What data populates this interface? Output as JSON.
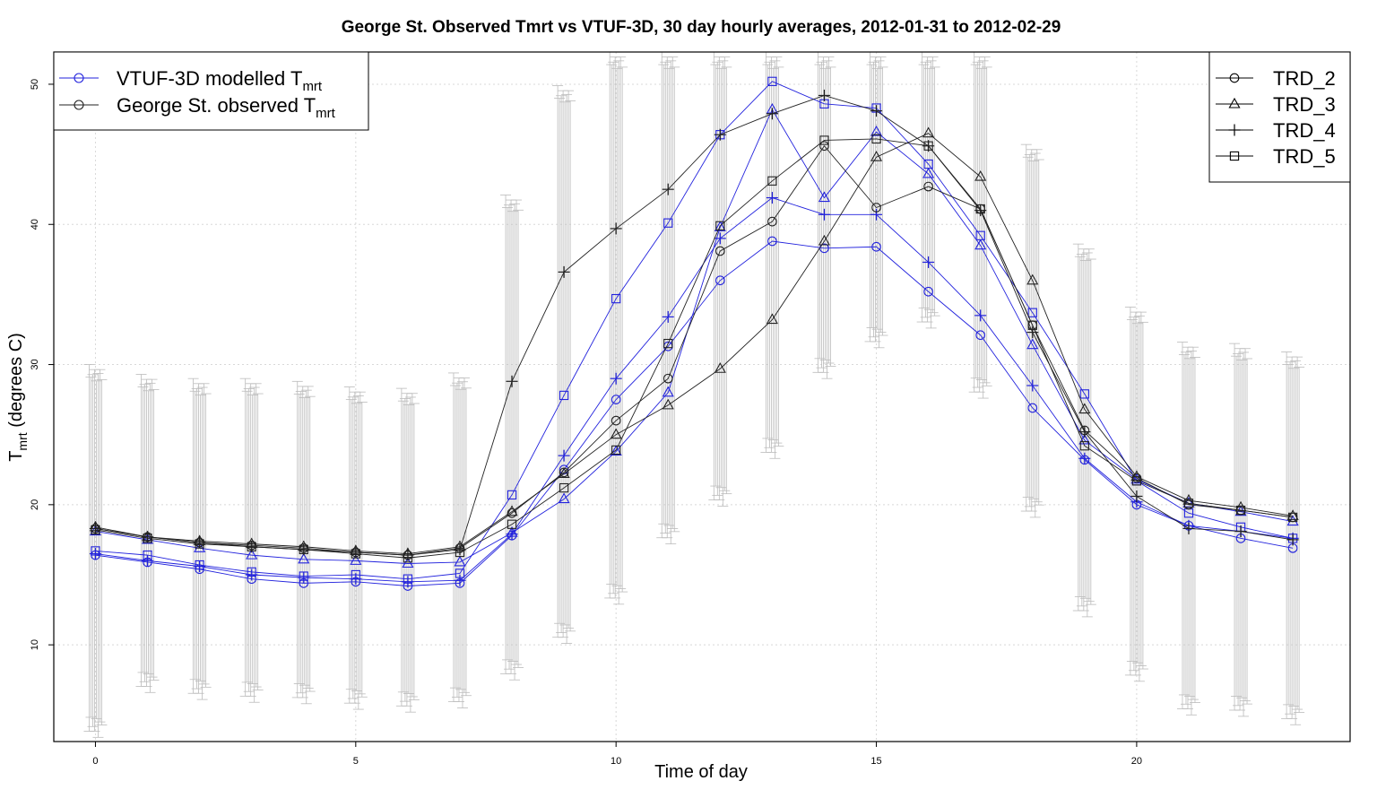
{
  "chart_data": {
    "type": "line",
    "title": "George St. Observed Tmrt vs VTUF-3D, 30 day hourly averages, 2012-01-31 to 2012-02-29",
    "xlabel": "Time of day",
    "ylabel": {
      "main": "T",
      "sub": "mrt",
      "rest": " (degrees C)"
    },
    "xlim": [
      -0.8,
      24.1
    ],
    "ylim": [
      3.1,
      52.3
    ],
    "x_ticks": [
      0,
      5,
      10,
      15,
      20
    ],
    "y_ticks": [
      10,
      20,
      30,
      40,
      50
    ],
    "grid": true,
    "x": [
      0,
      1,
      2,
      3,
      4,
      5,
      6,
      7,
      8,
      9,
      10,
      11,
      12,
      13,
      14,
      15,
      16,
      17,
      18,
      19,
      20,
      21,
      22,
      23
    ],
    "legend_source": {
      "position": "top-left",
      "entries": [
        {
          "main": "VTUF-3D modelled T",
          "sub": "mrt",
          "color": "#2222dd"
        },
        {
          "main": "George St. observed T",
          "sub": "mrt",
          "color": "#222222"
        }
      ]
    },
    "legend_sites": {
      "position": "top-right",
      "entries": [
        {
          "name": "TRD_2",
          "marker": "circle"
        },
        {
          "name": "TRD_3",
          "marker": "triangle"
        },
        {
          "name": "TRD_4",
          "marker": "plus"
        },
        {
          "name": "TRD_5",
          "marker": "square"
        }
      ]
    },
    "colors": {
      "modelled": "#2222dd",
      "observed": "#222222",
      "errorbar": "#bbbbbb",
      "grid": "#d8d8d8"
    },
    "series": [
      {
        "name": "TRD_2",
        "source": "modelled",
        "marker": "circle",
        "values": [
          16.4,
          15.9,
          15.4,
          14.7,
          14.4,
          14.5,
          14.2,
          14.4,
          17.8,
          22.5,
          27.5,
          31.3,
          36.0,
          38.8,
          38.3,
          38.4,
          35.2,
          32.1,
          26.9,
          23.2,
          20.0,
          18.5,
          17.6,
          16.9
        ]
      },
      {
        "name": "TRD_3",
        "source": "modelled",
        "marker": "triangle",
        "values": [
          18.1,
          17.5,
          16.9,
          16.4,
          16.1,
          16.0,
          15.8,
          15.9,
          18.0,
          20.4,
          23.8,
          28.0,
          39.8,
          48.2,
          41.9,
          46.6,
          43.6,
          38.5,
          31.4,
          24.6,
          21.8,
          20.1,
          19.5,
          18.8
        ]
      },
      {
        "name": "TRD_4",
        "source": "modelled",
        "marker": "plus",
        "values": [
          16.5,
          16.0,
          15.6,
          15.0,
          14.8,
          14.7,
          14.5,
          14.6,
          17.9,
          23.5,
          29.0,
          33.4,
          39.0,
          41.9,
          40.7,
          40.7,
          37.3,
          33.5,
          28.5,
          23.3,
          20.2,
          18.5,
          18.1,
          17.6
        ]
      },
      {
        "name": "TRD_5",
        "source": "modelled",
        "marker": "square",
        "values": [
          16.7,
          16.4,
          15.7,
          15.2,
          14.9,
          15.0,
          14.7,
          15.1,
          20.7,
          27.8,
          34.7,
          40.1,
          46.4,
          50.2,
          48.6,
          48.3,
          44.3,
          39.2,
          33.7,
          27.9,
          21.7,
          19.4,
          18.4,
          17.6
        ]
      },
      {
        "name": "TRD_2",
        "source": "observed",
        "marker": "circle",
        "values": [
          18.3,
          17.7,
          17.3,
          17.1,
          16.9,
          16.6,
          16.4,
          16.9,
          19.4,
          22.3,
          26.0,
          29.0,
          38.1,
          40.2,
          45.6,
          41.2,
          42.7,
          41.1,
          32.8,
          25.3,
          21.9,
          20.0,
          19.6,
          19.1
        ]
      },
      {
        "name": "TRD_3",
        "source": "observed",
        "marker": "triangle",
        "values": [
          18.4,
          17.7,
          17.4,
          17.2,
          17.0,
          16.7,
          16.5,
          17.0,
          19.5,
          22.2,
          25.0,
          27.1,
          29.7,
          33.2,
          38.8,
          44.8,
          46.5,
          43.4,
          36.0,
          26.8,
          22.0,
          20.3,
          19.8,
          19.2
        ]
      },
      {
        "name": "TRD_4",
        "source": "observed",
        "marker": "plus",
        "values": [
          18.3,
          17.7,
          17.3,
          17.0,
          16.8,
          16.6,
          16.4,
          16.8,
          28.8,
          36.6,
          39.7,
          42.5,
          46.4,
          47.9,
          49.2,
          48.1,
          45.6,
          41.0,
          32.3,
          25.2,
          20.6,
          18.3,
          18.1,
          17.5
        ]
      },
      {
        "name": "TRD_5",
        "source": "observed",
        "marker": "square",
        "values": [
          18.2,
          17.6,
          17.2,
          17.0,
          16.8,
          16.5,
          16.2,
          16.6,
          18.6,
          21.2,
          23.9,
          31.5,
          39.9,
          43.1,
          46.0,
          46.1,
          45.6,
          41.1,
          32.8,
          24.2,
          21.7,
          20.1,
          19.6,
          19.1
        ]
      }
    ],
    "error_bars": {
      "x": [
        0,
        1,
        2,
        3,
        4,
        5,
        6,
        7,
        8,
        9,
        10,
        11,
        12,
        13,
        14,
        15,
        16,
        17,
        18,
        19,
        20,
        21,
        22,
        23
      ],
      "upper": [
        30.0,
        29.3,
        29.0,
        29.0,
        28.8,
        28.4,
        28.3,
        29.4,
        42.1,
        49.9,
        52.3,
        52.3,
        52.3,
        52.3,
        52.3,
        52.3,
        52.3,
        52.3,
        45.7,
        38.6,
        34.1,
        31.6,
        31.5,
        30.9
      ],
      "lower": [
        3.4,
        6.6,
        6.1,
        5.9,
        5.8,
        5.4,
        5.2,
        5.5,
        7.5,
        10.1,
        12.9,
        17.2,
        19.9,
        23.3,
        29.0,
        31.2,
        32.6,
        27.6,
        19.1,
        12.0,
        7.4,
        5.0,
        4.9,
        4.3
      ]
    }
  }
}
